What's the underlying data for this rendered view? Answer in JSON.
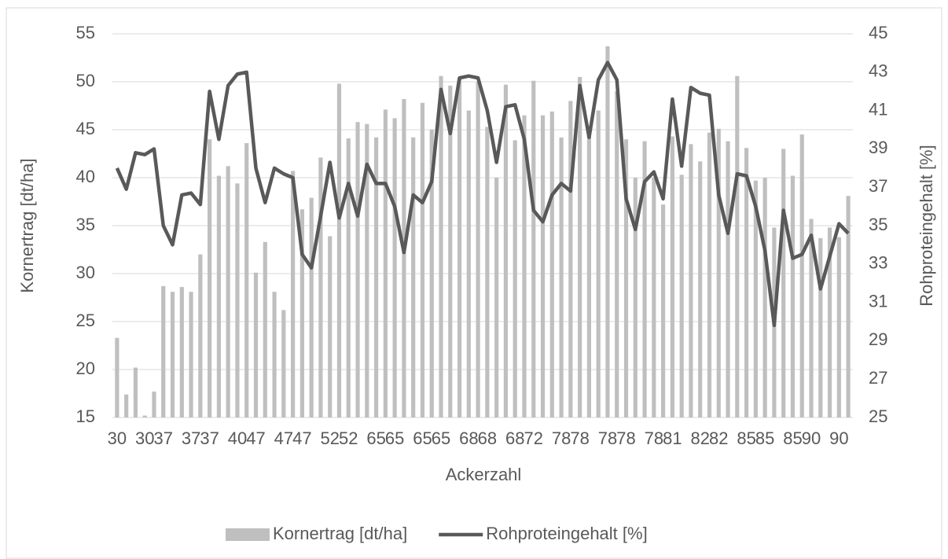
{
  "chart_data": {
    "type": "bar",
    "x_label": "Ackerzahl",
    "y_label": "Kornertrag [dt/ha]",
    "y2_label": "Rohproteingehalt [%]",
    "categories": [
      "30",
      null,
      null,
      "30",
      null,
      "37",
      null,
      null,
      "37",
      null,
      "37",
      null,
      null,
      "40",
      null,
      "47",
      null,
      null,
      "47",
      null,
      "47",
      null,
      null,
      "52",
      null,
      "52",
      null,
      null,
      "65",
      null,
      "65",
      null,
      null,
      "65",
      null,
      "65",
      null,
      null,
      "68",
      null,
      "68",
      null,
      null,
      "68",
      null,
      "72",
      null,
      null,
      "78",
      null,
      "78",
      null,
      null,
      "78",
      null,
      "78",
      null,
      null,
      "78",
      null,
      "81",
      null,
      null,
      "82",
      null,
      "82",
      null,
      null,
      "85",
      null,
      "85",
      null,
      null,
      "85",
      null,
      "90",
      null,
      null,
      "90",
      null
    ],
    "series": [
      {
        "name": "Kornertrag [dt/ha]",
        "type": "bar",
        "color": "#bfbfbf",
        "values": [
          23.3,
          17.4,
          20.2,
          15.2,
          17.7,
          28.7,
          28.1,
          28.6,
          28.1,
          32.0,
          44.0,
          40.2,
          41.2,
          39.4,
          43.6,
          30.1,
          33.3,
          28.1,
          26.2,
          40.7,
          36.7,
          37.9,
          42.1,
          33.9,
          49.8,
          44.1,
          45.8,
          45.6,
          44.2,
          47.1,
          46.2,
          48.2,
          44.2,
          47.8,
          45.0,
          50.6,
          49.6,
          50.3,
          47.0,
          50.0,
          45.3,
          40.0,
          49.7,
          43.9,
          46.5,
          50.1,
          46.5,
          46.9,
          44.2,
          48.0,
          50.5,
          45.0,
          47.0,
          53.7,
          49.0,
          44.0,
          40.0,
          43.8,
          40.0,
          37.2,
          44.3,
          40.3,
          43.5,
          41.7,
          44.7,
          45.1,
          43.8,
          50.6,
          43.1,
          39.7,
          40.0,
          34.8,
          43.0,
          40.2,
          44.5,
          35.7,
          33.7,
          34.8,
          33.8,
          38.1
        ]
      },
      {
        "name": "Rohproteingehalt [%]",
        "type": "line",
        "axis": "y2",
        "color": "#595959",
        "values": [
          38,
          36.9,
          38.8,
          38.7,
          39,
          35,
          34,
          36.6,
          36.7,
          36.1,
          42,
          39.5,
          42.3,
          42.9,
          43,
          38,
          36.2,
          38,
          37.7,
          37.5,
          33.5,
          32.8,
          35.5,
          38.3,
          35.4,
          37.2,
          35.5,
          38.2,
          37.2,
          37.2,
          36,
          33.6,
          36.6,
          36.2,
          37.3,
          42.1,
          39.8,
          42.7,
          42.8,
          42.7,
          41,
          38.3,
          41.2,
          41.3,
          39.5,
          35.8,
          35.2,
          36.6,
          37.2,
          36.8,
          42.3,
          39.6,
          42.6,
          43.5,
          42.6,
          36.4,
          34.8,
          37.3,
          37.8,
          36.4,
          41.6,
          38.1,
          42.2,
          41.9,
          41.8,
          36.6,
          34.6,
          37.7,
          37.6,
          36,
          33.7,
          29.8,
          35.8,
          33.3,
          33.5,
          34.5,
          31.7,
          33.4,
          35.1,
          34.6
        ]
      }
    ],
    "ylim": [
      15,
      55
    ],
    "yticks": [
      15,
      20,
      25,
      30,
      35,
      40,
      45,
      50,
      55
    ],
    "y2lim": [
      25,
      45
    ],
    "y2ticks": [
      25,
      27,
      29,
      31,
      33,
      35,
      37,
      39,
      41,
      43,
      45
    ],
    "grid": true,
    "legend": "bottom"
  }
}
